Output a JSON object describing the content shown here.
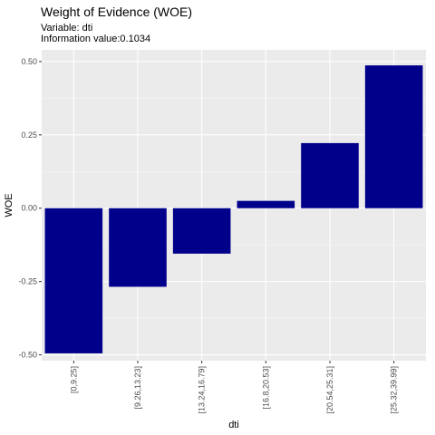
{
  "chart_data": {
    "type": "bar",
    "title": "Weight of Evidence (WOE)",
    "subtitle_lines": [
      "Variable: dti",
      "Information value:0.1034"
    ],
    "xlabel": "dti",
    "ylabel": "WOE",
    "categories": [
      "[0,9.25]",
      "[9.26,13.23]",
      "[13.24,16.79]",
      "[16.8,20.53]",
      "[20.54,25.31]",
      "[25.32,39.99]"
    ],
    "values": [
      -0.495,
      -0.268,
      -0.155,
      0.025,
      0.222,
      0.487
    ],
    "ylim": [
      -0.52,
      0.54
    ],
    "yticks": [
      -0.5,
      -0.25,
      0,
      0.25,
      0.5
    ],
    "ytick_labels": [
      "-0.50",
      "-0.25",
      "0.00",
      "0.25",
      "0.50"
    ],
    "bar_color": "#00008B",
    "panel_color": "#EBEBEB",
    "grid": true,
    "legend": "none"
  }
}
